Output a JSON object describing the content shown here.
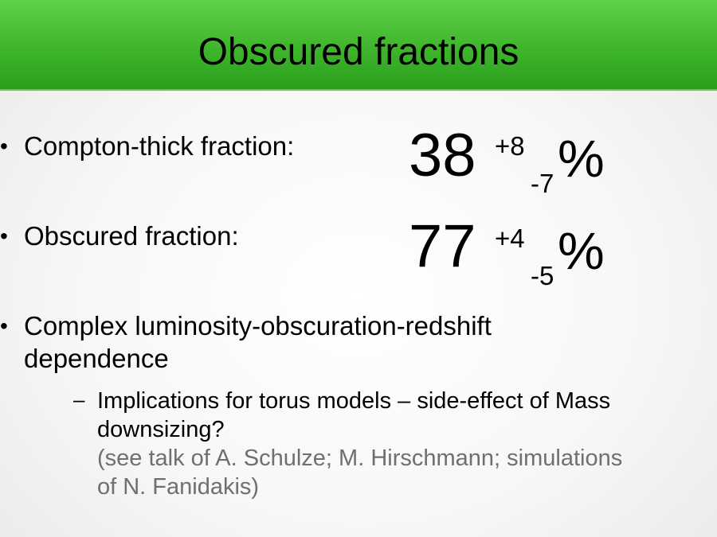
{
  "title": "Obscured fractions",
  "bullets": [
    {
      "label": "Compton-thick fraction:",
      "value": "38",
      "plus": "+8",
      "minus": "-7",
      "unit": "%"
    },
    {
      "label": "Obscured fraction:",
      "value": "77",
      "plus": "+4",
      "minus": "-5",
      "unit": "%"
    }
  ],
  "bullet3": {
    "line1": "Complex luminosity-obscuration-redshift",
    "line2": "dependence"
  },
  "subbullet": {
    "dash": "–",
    "line1": "Implications for torus models – side-effect of Mass",
    "line2": "downsizing?",
    "note1": "(see talk of A. Schulze; M. Hirschmann; simulations",
    "note2": "of N. Fanidakis)"
  },
  "bullet_symbol": "•",
  "colors": {
    "title_bar": "#3fb52c",
    "note_text": "#6f6f6f"
  }
}
